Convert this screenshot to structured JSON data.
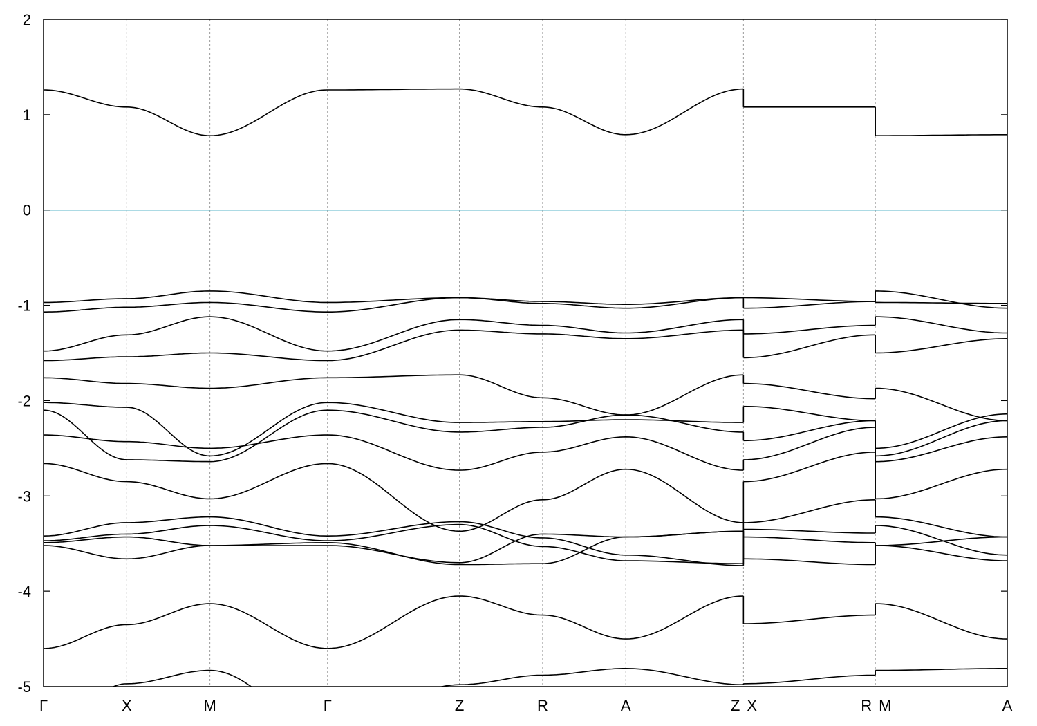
{
  "chart_data": {
    "type": "line",
    "title": "",
    "xlabel": "",
    "ylabel": "",
    "ylim": [
      -5,
      2
    ],
    "y_ticks": [
      2,
      1,
      0,
      -1,
      -2,
      -3,
      -4,
      -5
    ],
    "grid": "vertical dotted lines at high-symmetry points",
    "fermi_level": {
      "value": 0,
      "color": "#5ab4c8"
    },
    "band_color": "#000000",
    "kpoints": [
      {
        "label": "Γ",
        "x": 0
      },
      {
        "label": "X",
        "x": 0.5
      },
      {
        "label": "M",
        "x": 1.0
      },
      {
        "label": "Γ",
        "x": 1.707
      },
      {
        "label": "Z",
        "x": 2.5
      },
      {
        "label": "R",
        "x": 3.0
      },
      {
        "label": "A",
        "x": 3.5
      },
      {
        "label": "Z X",
        "x": 4.207
      },
      {
        "label": "R M",
        "x": 5.0
      },
      {
        "label": "A",
        "x": 5.793
      }
    ],
    "segments": [
      {
        "name": "Γ-X-M-Γ-Z-R-A-Z",
        "x": [
          0,
          0.5,
          1.0,
          1.707,
          2.5,
          3.0,
          3.5,
          4.207
        ],
        "bands": [
          [
            1.26,
            1.08,
            0.78,
            1.26,
            1.27,
            1.08,
            0.79,
            1.27
          ],
          [
            -0.97,
            -0.93,
            -0.85,
            -0.97,
            -0.92,
            -0.96,
            -0.99,
            -0.92
          ],
          [
            -1.07,
            -1.02,
            -0.97,
            -1.07,
            -0.92,
            -0.98,
            -1.03,
            -0.92
          ],
          [
            -1.48,
            -1.31,
            -1.12,
            -1.48,
            -1.15,
            -1.21,
            -1.29,
            -1.15
          ],
          [
            -1.58,
            -1.54,
            -1.5,
            -1.58,
            -1.26,
            -1.3,
            -1.35,
            -1.26
          ],
          [
            -1.76,
            -1.82,
            -1.87,
            -1.76,
            -1.73,
            -1.97,
            -2.15,
            -1.73
          ],
          [
            -2.02,
            -2.07,
            -2.58,
            -2.02,
            -2.23,
            -2.22,
            -2.2,
            -2.23
          ],
          [
            -2.1,
            -2.62,
            -2.64,
            -2.1,
            -2.33,
            -2.28,
            -2.15,
            -2.33
          ],
          [
            -2.36,
            -2.43,
            -2.5,
            -2.36,
            -2.73,
            -2.54,
            -2.38,
            -2.73
          ],
          [
            -2.66,
            -2.85,
            -3.03,
            -2.66,
            -3.37,
            -3.04,
            -2.72,
            -3.28
          ],
          [
            -3.42,
            -3.28,
            -3.22,
            -3.42,
            -3.27,
            -3.44,
            -3.62,
            -3.73
          ],
          [
            -3.47,
            -3.4,
            -3.31,
            -3.47,
            -3.3,
            -3.53,
            -3.68,
            -3.71
          ],
          [
            -3.49,
            -3.43,
            -3.52,
            -3.49,
            -3.72,
            -3.71,
            -3.43,
            -3.37
          ],
          [
            -3.52,
            -3.66,
            -3.52,
            -3.52,
            -3.7,
            -3.4,
            -3.43,
            -3.37
          ],
          [
            -4.6,
            -4.35,
            -4.13,
            -4.6,
            -4.05,
            -4.25,
            -4.5,
            -4.05
          ],
          [
            -5.45,
            -4.97,
            -4.83,
            -5.45,
            -4.98,
            -4.88,
            -4.81,
            -4.98
          ]
        ]
      },
      {
        "name": "X-R",
        "x": [
          4.207,
          5.0
        ],
        "bands": [
          [
            1.08,
            1.08
          ],
          [
            -0.92,
            -0.96
          ],
          [
            -1.03,
            -0.96
          ],
          [
            -1.3,
            -1.21
          ],
          [
            -1.55,
            -1.31
          ],
          [
            -1.82,
            -1.98
          ],
          [
            -2.06,
            -2.21
          ],
          [
            -2.42,
            -2.21
          ],
          [
            -2.62,
            -2.28
          ],
          [
            -2.85,
            -2.54
          ],
          [
            -3.28,
            -3.04
          ],
          [
            -3.35,
            -3.39
          ],
          [
            -3.43,
            -3.49
          ],
          [
            -3.66,
            -3.72
          ],
          [
            -4.34,
            -4.25
          ],
          [
            -4.97,
            -4.88
          ]
        ]
      },
      {
        "name": "M-A",
        "x": [
          5.0,
          5.793
        ],
        "bands": [
          [
            0.78,
            0.79
          ],
          [
            -0.85,
            -1.03
          ],
          [
            -0.97,
            -0.98
          ],
          [
            -1.12,
            -1.29
          ],
          [
            -1.5,
            -1.35
          ],
          [
            -1.87,
            -2.21
          ],
          [
            -2.5,
            -2.14
          ],
          [
            -2.58,
            -2.21
          ],
          [
            -2.64,
            -2.38
          ],
          [
            -3.03,
            -2.72
          ],
          [
            -3.22,
            -3.43
          ],
          [
            -3.31,
            -3.62
          ],
          [
            -3.52,
            -3.43
          ],
          [
            -3.52,
            -3.68
          ],
          [
            -4.13,
            -4.5
          ],
          [
            -4.83,
            -4.81
          ]
        ]
      }
    ]
  }
}
